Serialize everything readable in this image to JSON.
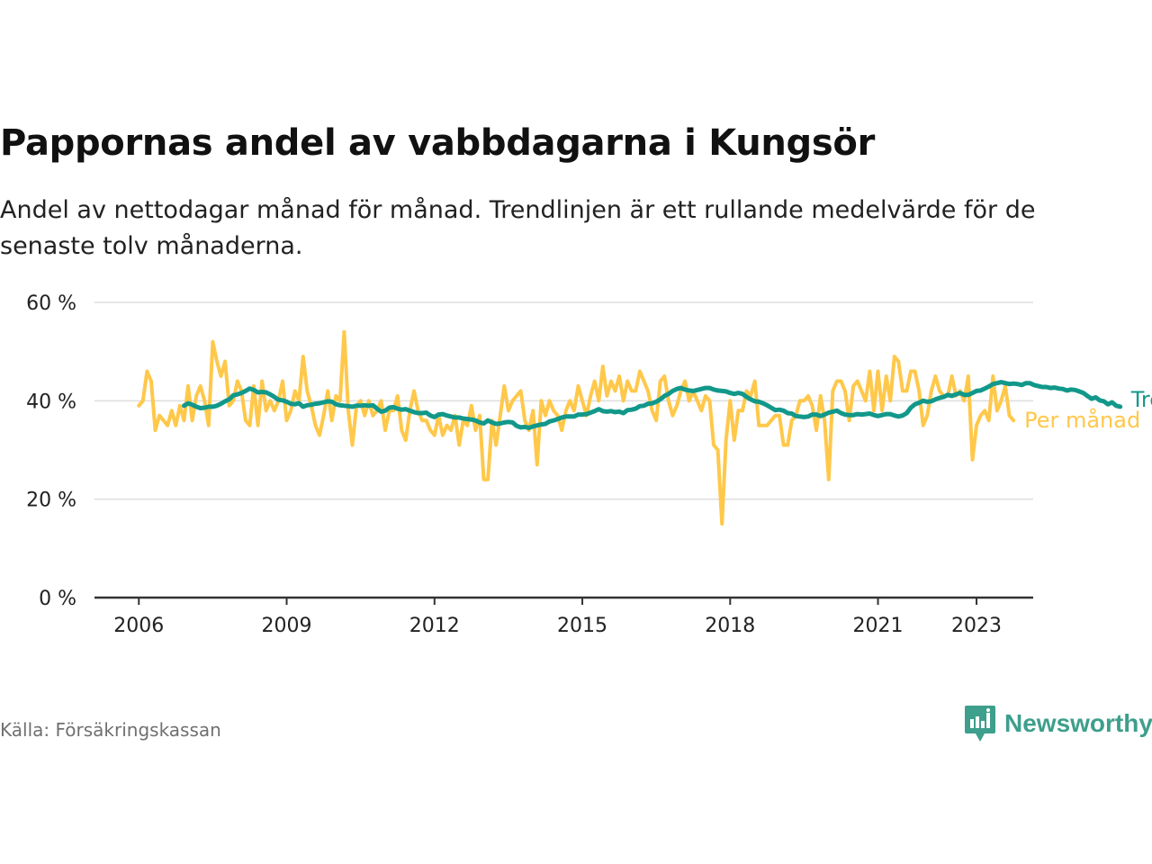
{
  "title": "Pappornas andel av vabbdagarna i Kungsör",
  "subtitle": "Andel av nettodagar månad för månad. Trendlinjen är ett rullande medelvärde för de senaste tolv månaderna.",
  "source": "Källa: Försäkringskassan",
  "brand": {
    "name": "Newsworthy",
    "icon": "newsworthy-logo-icon"
  },
  "colors": {
    "trend": "#12988a",
    "monthly": "#ffc84a",
    "grid": "#dddddd",
    "axis": "#333333",
    "text": "#222222",
    "source": "#707070",
    "brand": "#3d9f8c"
  },
  "chart_data": {
    "type": "line",
    "title": "Pappornas andel av vabbdagarna i Kungsör",
    "ylim": [
      0,
      60
    ],
    "yticks": [
      {
        "value": 0,
        "label": "0 %"
      },
      {
        "value": 20,
        "label": "20 %"
      },
      {
        "value": 40,
        "label": "40 %"
      },
      {
        "value": 60,
        "label": "60 %"
      }
    ],
    "xticks": [
      {
        "value": 2006,
        "label": "2006"
      },
      {
        "value": 2009,
        "label": "2009"
      },
      {
        "value": 2012,
        "label": "2012"
      },
      {
        "value": 2015,
        "label": "2015"
      },
      {
        "value": 2018,
        "label": "2018"
      },
      {
        "value": 2021,
        "label": "2021"
      },
      {
        "value": 2023,
        "label": "2023"
      }
    ],
    "xlim": [
      2005.1,
      2024.15
    ],
    "grid": true,
    "legend": "inline labels at right end of lines",
    "series": [
      {
        "name": "Per månad",
        "color": "#ffc84a",
        "start": "2006-01",
        "values": [
          39,
          40,
          46,
          44,
          34,
          37,
          36,
          35,
          38,
          35,
          39,
          36,
          43,
          36,
          41,
          43,
          40,
          35,
          52,
          48,
          45,
          48,
          39,
          40,
          44,
          42,
          36,
          35,
          43,
          35,
          44,
          38,
          40,
          38,
          40,
          44,
          36,
          38,
          42,
          40,
          49,
          42,
          39,
          35,
          33,
          37,
          42,
          36,
          41,
          40,
          54,
          38,
          31,
          39,
          40,
          37,
          40,
          37,
          38,
          40,
          34,
          38,
          38,
          41,
          34,
          32,
          38,
          42,
          38,
          36,
          36,
          34,
          33,
          37,
          33,
          35,
          34,
          37,
          31,
          36,
          35,
          39,
          34,
          37,
          24,
          24,
          36,
          31,
          37,
          43,
          38,
          40,
          41,
          42,
          36,
          34,
          38,
          27,
          40,
          37,
          40,
          38,
          37,
          34,
          38,
          40,
          38,
          43,
          40,
          37,
          41,
          44,
          40,
          47,
          41,
          44,
          42,
          45,
          40,
          44,
          42,
          42,
          46,
          44,
          42,
          38,
          36,
          44,
          45,
          40,
          37,
          39,
          42,
          44,
          40,
          42,
          40,
          38,
          41,
          40,
          31,
          30,
          15,
          32,
          40,
          32,
          38,
          38,
          42,
          41,
          44,
          35,
          35,
          35,
          36,
          37,
          37,
          31,
          31,
          36,
          37,
          40,
          40,
          41,
          39,
          34,
          41,
          36,
          24,
          42,
          44,
          44,
          42,
          36,
          43,
          44,
          42,
          40,
          46,
          38,
          46,
          38,
          45,
          40,
          49,
          48,
          42,
          42,
          46,
          46,
          42,
          35,
          37,
          42,
          45,
          42,
          41,
          41,
          45,
          41,
          42,
          40,
          45,
          28,
          35,
          37,
          38,
          36,
          45,
          38,
          40,
          43,
          37,
          36
        ],
        "label_end": 36
      },
      {
        "name": "Trend",
        "color": "#12988a",
        "start": "2006-12",
        "values": [
          39,
          39.5,
          39.2,
          38.8,
          38.5,
          38.6,
          38.8,
          38.8,
          39,
          39.4,
          39.9,
          40.3,
          41.1,
          41.3,
          41.6,
          42,
          42.5,
          42.2,
          41.7,
          41.8,
          41.7,
          41.3,
          40.8,
          40.2,
          40.1,
          39.8,
          39.4,
          39.3,
          39.5,
          38.8,
          39.1,
          39.2,
          39.4,
          39.5,
          39.7,
          39.9,
          39.8,
          39.3,
          39.1,
          39,
          38.9,
          38.8,
          39,
          39,
          39.1,
          39,
          39.1,
          38.4,
          37.8,
          38,
          38.6,
          38.7,
          38.4,
          38.2,
          38.3,
          38,
          37.7,
          37.5,
          37.5,
          37.6,
          37,
          36.7,
          37.2,
          37.3,
          37,
          36.8,
          36.6,
          36.6,
          36.4,
          36.3,
          36.2,
          36,
          35.6,
          35.4,
          36,
          35.6,
          35.3,
          35.4,
          35.6,
          35.7,
          35.6,
          34.9,
          34.6,
          34.7,
          34.5,
          34.8,
          35,
          35.2,
          35.3,
          35.8,
          36,
          36.3,
          36.6,
          36.8,
          36.8,
          36.8,
          37.2,
          37.2,
          37.3,
          37.6,
          37.9,
          38.3,
          37.9,
          37.8,
          37.9,
          37.7,
          37.8,
          37.5,
          38.1,
          38.2,
          38.4,
          38.9,
          39,
          39.4,
          39.5,
          39.8,
          40.3,
          41,
          41.4,
          42,
          42.4,
          42.6,
          42.3,
          42.1,
          42,
          42.2,
          42.4,
          42.6,
          42.6,
          42.3,
          42.1,
          42,
          41.9,
          41.6,
          41.4,
          41.6,
          41.4,
          40.8,
          40.3,
          39.9,
          39.8,
          39.5,
          39.1,
          38.6,
          38.1,
          38.2,
          38,
          37.5,
          37.4,
          36.9,
          36.8,
          36.7,
          36.8,
          37.2,
          37.2,
          36.9,
          37.2,
          37.6,
          37.8,
          38,
          37.5,
          37.2,
          37.1,
          37.1,
          37.3,
          37.2,
          37.3,
          37.4,
          37.1,
          36.9,
          37.1,
          37.3,
          37.3,
          37,
          36.8,
          37,
          37.5,
          38.6,
          39.3,
          39.6,
          40,
          39.8,
          39.9,
          40.3,
          40.6,
          40.8,
          41.2,
          41,
          41.3,
          41.6,
          41.2,
          41.2,
          41.6,
          42,
          42.1,
          42.5,
          42.9,
          43.4,
          43.6,
          43.8,
          43.6,
          43.4,
          43.5,
          43.4,
          43.2,
          43.6,
          43.6,
          43.2,
          43,
          42.8,
          42.8,
          42.6,
          42.7,
          42.5,
          42.4,
          42.1,
          42.3,
          42.2,
          41.9,
          41.6,
          41,
          40.4,
          40.7,
          40.1,
          39.9,
          39.3,
          39.7,
          39,
          38.8
        ]
      }
    ]
  }
}
